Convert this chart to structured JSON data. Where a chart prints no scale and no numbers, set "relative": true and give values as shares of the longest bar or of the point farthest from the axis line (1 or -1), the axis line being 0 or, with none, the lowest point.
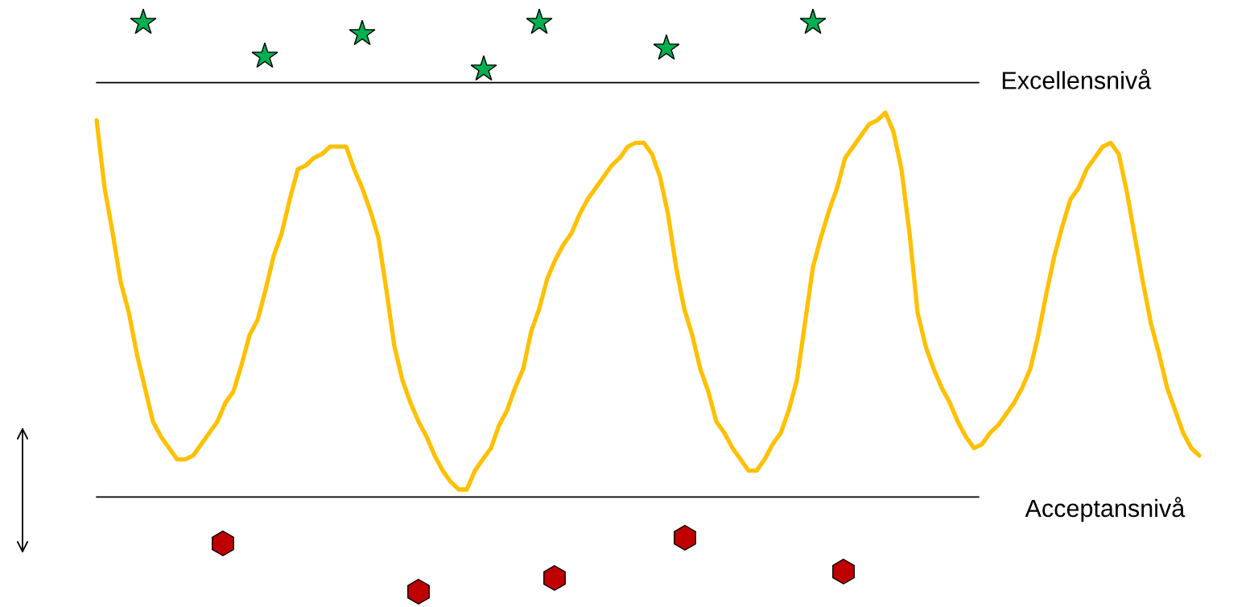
{
  "chart_data": {
    "type": "line",
    "relative": true,
    "legend": false,
    "tick_labels": false,
    "categories": [
      null,
      null,
      null,
      null,
      null,
      null,
      null,
      null,
      null,
      null,
      null,
      null,
      null,
      null,
      null,
      null,
      null,
      null,
      null,
      null,
      null,
      null,
      null,
      null,
      null,
      null,
      null,
      null,
      null,
      null,
      null,
      null,
      null,
      null,
      null,
      null,
      null,
      null,
      null,
      null,
      null,
      null,
      null,
      null,
      null,
      null,
      null,
      null,
      null,
      null,
      null,
      null,
      null,
      null,
      null,
      null,
      null,
      null,
      null,
      null,
      null,
      null,
      null,
      null,
      null,
      null,
      null,
      null,
      null,
      null,
      null,
      null,
      null,
      null,
      null,
      null,
      null,
      null,
      null,
      null,
      null,
      null,
      null,
      null,
      null,
      null,
      null,
      null,
      null,
      null,
      null,
      null,
      null,
      null,
      null,
      null,
      null,
      null,
      null,
      null,
      null,
      null,
      null,
      null,
      null,
      null,
      null,
      null,
      null,
      null,
      null,
      null,
      null,
      null,
      null,
      null,
      null,
      null,
      null,
      null,
      null,
      null,
      null,
      null,
      null,
      null,
      null,
      null,
      null,
      null,
      null,
      null,
      null,
      null,
      null,
      null,
      null,
      null
    ],
    "series": [
      {
        "color": "#ffc000",
        "marker": "none",
        "line_style": "solid",
        "values": [
          0.98,
          0.8,
          0.68,
          0.55,
          0.47,
          0.36,
          0.27,
          0.18,
          0.14,
          0.11,
          0.08,
          0.08,
          0.09,
          0.12,
          0.15,
          0.18,
          0.23,
          0.26,
          0.33,
          0.41,
          0.45,
          0.53,
          0.62,
          0.68,
          0.77,
          0.85,
          0.86,
          0.88,
          0.89,
          0.91,
          0.91,
          0.91,
          0.85,
          0.8,
          0.74,
          0.67,
          0.53,
          0.38,
          0.29,
          0.23,
          0.18,
          0.14,
          0.09,
          0.05,
          0.02,
          0,
          0,
          0.05,
          0.08,
          0.11,
          0.17,
          0.21,
          0.27,
          0.32,
          0.42,
          0.48,
          0.56,
          0.61,
          0.65,
          0.68,
          0.73,
          0.77,
          0.8,
          0.83,
          0.86,
          0.88,
          0.91,
          0.92,
          0.92,
          0.89,
          0.83,
          0.73,
          0.59,
          0.48,
          0.41,
          0.32,
          0.26,
          0.18,
          0.15,
          0.11,
          0.08,
          0.05,
          0.05,
          0.08,
          0.12,
          0.15,
          0.21,
          0.29,
          0.44,
          0.59,
          0.67,
          0.74,
          0.8,
          0.88,
          0.91,
          0.94,
          0.97,
          0.98,
          1,
          0.95,
          0.85,
          0.68,
          0.47,
          0.38,
          0.32,
          0.27,
          0.23,
          0.18,
          0.14,
          0.11,
          0.12,
          0.15,
          0.17,
          0.2,
          0.23,
          0.27,
          0.32,
          0.41,
          0.52,
          0.62,
          0.7,
          0.77,
          0.8,
          0.85,
          0.88,
          0.91,
          0.92,
          0.89,
          0.79,
          0.67,
          0.55,
          0.44,
          0.36,
          0.27,
          0.21,
          0.15,
          0.11,
          0.09
        ]
      }
    ],
    "ref_lines": [
      {
        "axis": "y",
        "value": 1.08,
        "label": "Excellensnivå",
        "color": "#000000",
        "line_style": "solid"
      },
      {
        "axis": "y",
        "value": -0.02,
        "label": "Acceptansnivå",
        "color": "#000000",
        "line_style": "solid"
      }
    ]
  }
}
